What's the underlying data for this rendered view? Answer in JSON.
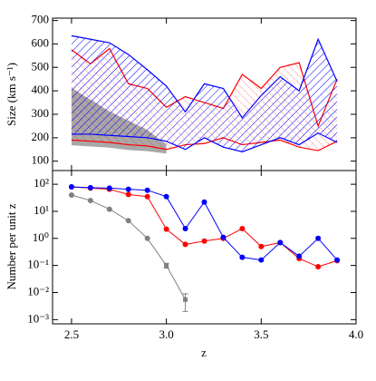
{
  "chart_data": [
    {
      "type": "band",
      "ylabel": "Size (km s⁻¹)",
      "x": [
        2.5,
        2.6,
        2.7,
        2.8,
        2.9,
        3.0,
        3.1,
        3.2,
        3.3,
        3.4,
        3.5,
        3.6,
        3.7,
        3.8,
        3.9
      ],
      "xlim": [
        2.4,
        4.0
      ],
      "ylim": [
        60,
        710
      ],
      "yticks": [
        100,
        200,
        300,
        400,
        500,
        600,
        700
      ],
      "series": [
        {
          "color": "#a8a8a8",
          "fill": "solid",
          "upper": [
            410,
            360,
            310,
            270,
            230,
            170,
            null,
            null,
            null,
            null,
            null,
            null,
            null,
            null,
            null
          ],
          "lower": [
            170,
            165,
            160,
            150,
            145,
            135,
            null,
            null,
            null,
            null,
            null,
            null,
            null,
            null,
            null
          ]
        },
        {
          "color": "#ff0000",
          "fill": "dots",
          "upper": [
            575,
            515,
            580,
            430,
            410,
            330,
            375,
            350,
            325,
            470,
            410,
            500,
            520,
            250,
            450
          ],
          "lower": [
            190,
            185,
            180,
            170,
            165,
            150,
            170,
            175,
            200,
            170,
            180,
            190,
            160,
            145,
            185
          ]
        },
        {
          "color": "#0000ff",
          "fill": "hatch",
          "upper": [
            635,
            620,
            605,
            555,
            490,
            420,
            310,
            430,
            410,
            285,
            380,
            460,
            400,
            620,
            440
          ],
          "lower": [
            215,
            215,
            210,
            205,
            200,
            185,
            150,
            200,
            160,
            140,
            170,
            200,
            170,
            220,
            180
          ]
        }
      ]
    },
    {
      "type": "line",
      "log": true,
      "xlabel": "z",
      "ylabel": "Number per unit z",
      "x": [
        2.5,
        2.6,
        2.7,
        2.8,
        2.9,
        3.0,
        3.1,
        3.2,
        3.3,
        3.4,
        3.5,
        3.6,
        3.7,
        3.8,
        3.9
      ],
      "xlim": [
        2.4,
        4.0
      ],
      "xticks": [
        2.5,
        {
          "value": 3,
          "label": "3.0"
        },
        3.5,
        {
          "value": 4,
          "label": "4.0"
        }
      ],
      "ylim": [
        0.0007,
        320
      ],
      "yticks": [
        {
          "value": 100,
          "label": "10²"
        },
        {
          "value": 10,
          "label": "10¹"
        },
        {
          "value": 1,
          "label": "10⁰"
        },
        {
          "value": 0.1,
          "label": "10⁻¹"
        },
        {
          "value": 0.01,
          "label": "10⁻²"
        },
        {
          "value": 0.001,
          "label": "10⁻³"
        }
      ],
      "series": [
        {
          "color": "#808080",
          "values": [
            40,
            25,
            12,
            4.5,
            1.0,
            0.1,
            0.0055,
            null,
            null,
            null,
            null,
            null,
            null,
            null,
            null
          ],
          "errors": [
            null,
            null,
            null,
            null,
            null,
            0.02,
            0.0035,
            null,
            null,
            null,
            null,
            null,
            null,
            null,
            null
          ]
        },
        {
          "color": "#ff0000",
          "values": [
            80,
            72,
            65,
            42,
            35,
            2.2,
            0.6,
            0.8,
            1.0,
            2.3,
            0.5,
            0.7,
            0.18,
            0.09,
            0.15
          ]
        },
        {
          "color": "#0000ff",
          "values": [
            80,
            75,
            72,
            65,
            60,
            35,
            2.3,
            22,
            1.1,
            0.2,
            0.16,
            0.7,
            0.22,
            1.0,
            0.16
          ]
        }
      ]
    }
  ]
}
